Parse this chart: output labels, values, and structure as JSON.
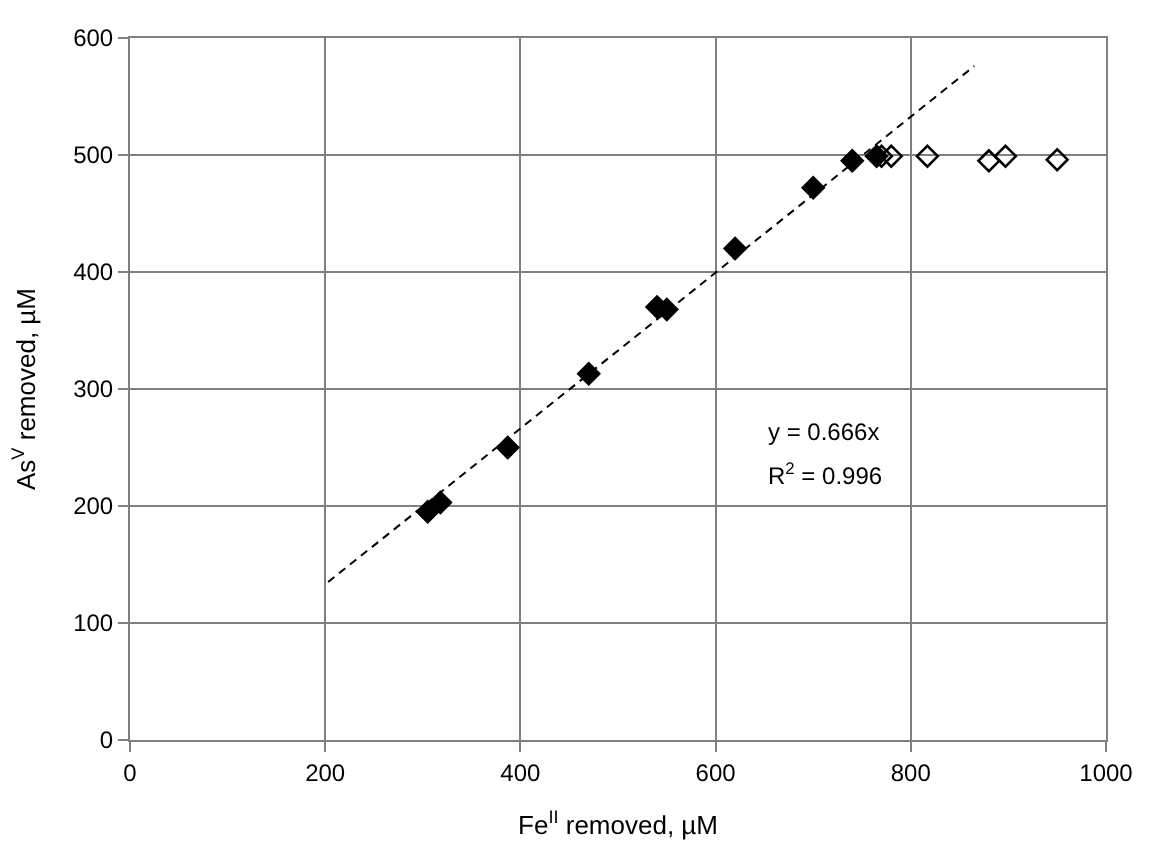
{
  "chart_data": {
    "type": "scatter",
    "xlabel": "Fe$^{II}$ removed, µM",
    "ylabel": "As$^{V}$ removed, µM",
    "xlim": [
      0,
      1000
    ],
    "xticks": [
      0,
      200,
      400,
      600,
      800,
      1000
    ],
    "ylim": [
      0,
      600
    ],
    "yticks": [
      0,
      100,
      200,
      300,
      400,
      500,
      600
    ],
    "grid": true,
    "legend": false,
    "series": [
      {
        "color": "#000000",
        "marker": "diamond",
        "x": [
          305,
          318,
          387,
          468,
          470,
          540,
          550,
          620,
          700,
          740,
          755,
          760,
          765
        ],
        "values": [
          195,
          203,
          250,
          null,
          313,
          370,
          368,
          420,
          472,
          495,
          null,
          null,
          499
        ]
      },
      {
        "color": "#000000",
        "marker": "diamond-open",
        "x": [
          770,
          780,
          817,
          880,
          897,
          950
        ],
        "values": [
          499,
          499,
          499,
          495,
          499,
          496
        ]
      },
      {
        "type": "line",
        "color": "#000000",
        "line_style": "dashed",
        "marker": "none",
        "x": [
          203,
          865
        ],
        "values": [
          135,
          576
        ]
      }
    ],
    "annotations": [
      "y = 0.666x",
      "R$^{2}$ = 0.996"
    ]
  }
}
